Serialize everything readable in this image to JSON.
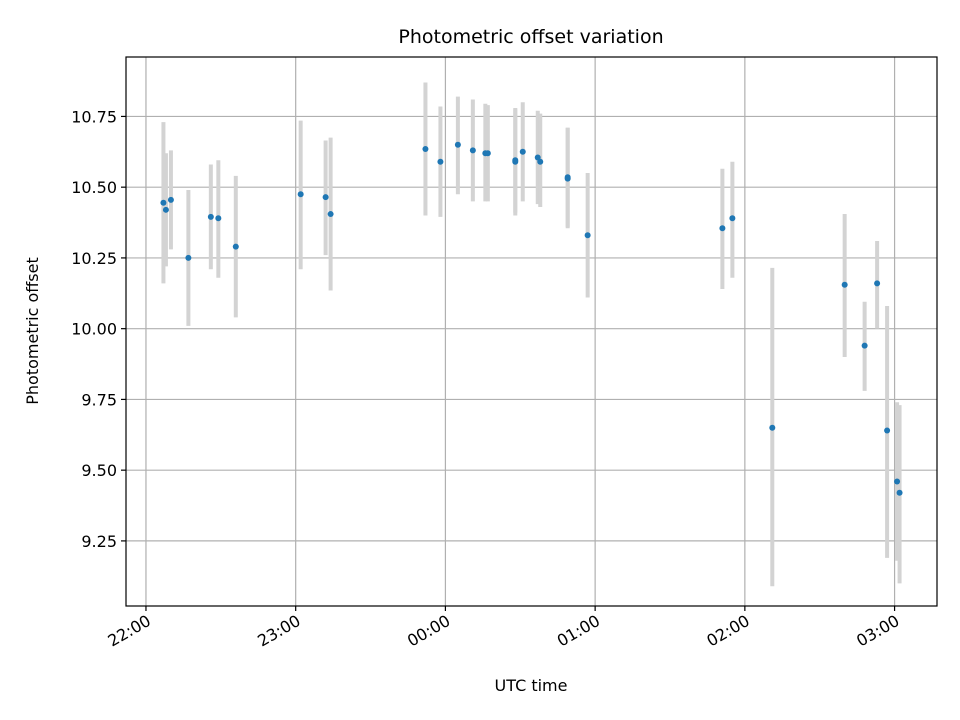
{
  "chart_data": {
    "type": "scatter",
    "title": "Photometric offset variation",
    "xlabel": "UTC time",
    "ylabel": "Photometric offset",
    "x_unit": "UTC time of night (22:00 to 03:00)",
    "xlim": [
      "21:52",
      "03:17"
    ],
    "ylim": [
      9.02,
      10.96
    ],
    "grid": true,
    "x_ticks": [
      "22:00",
      "23:00",
      "00:00",
      "01:00",
      "02:00",
      "03:00"
    ],
    "y_ticks": [
      "9.25",
      "9.50",
      "9.75",
      "10.00",
      "10.25",
      "10.50",
      "10.75"
    ],
    "colors": {
      "point": "#1f77b4",
      "errorbar": "#d3d3d3",
      "grid": "#b0b0b0"
    },
    "points": [
      {
        "x": "22:07",
        "y": 10.445,
        "yerr_low": 10.16,
        "yerr_high": 10.73
      },
      {
        "x": "22:08",
        "y": 10.42,
        "yerr_low": 10.22,
        "yerr_high": 10.62
      },
      {
        "x": "22:10",
        "y": 10.455,
        "yerr_low": 10.28,
        "yerr_high": 10.63
      },
      {
        "x": "22:17",
        "y": 10.25,
        "yerr_low": 10.01,
        "yerr_high": 10.49
      },
      {
        "x": "22:26",
        "y": 10.395,
        "yerr_low": 10.21,
        "yerr_high": 10.58
      },
      {
        "x": "22:29",
        "y": 10.39,
        "yerr_low": 10.18,
        "yerr_high": 10.595
      },
      {
        "x": "22:36",
        "y": 10.29,
        "yerr_low": 10.04,
        "yerr_high": 10.54
      },
      {
        "x": "23:02",
        "y": 10.475,
        "yerr_low": 10.21,
        "yerr_high": 10.735
      },
      {
        "x": "23:12",
        "y": 10.465,
        "yerr_low": 10.26,
        "yerr_high": 10.665
      },
      {
        "x": "23:14",
        "y": 10.405,
        "yerr_low": 10.135,
        "yerr_high": 10.675
      },
      {
        "x": "23:52",
        "y": 10.635,
        "yerr_low": 10.4,
        "yerr_high": 10.87
      },
      {
        "x": "23:58",
        "y": 10.59,
        "yerr_low": 10.395,
        "yerr_high": 10.785
      },
      {
        "x": "00:05",
        "y": 10.65,
        "yerr_low": 10.475,
        "yerr_high": 10.82
      },
      {
        "x": "00:11",
        "y": 10.63,
        "yerr_low": 10.45,
        "yerr_high": 10.81
      },
      {
        "x": "00:16",
        "y": 10.62,
        "yerr_low": 10.45,
        "yerr_high": 10.795
      },
      {
        "x": "00:17",
        "y": 10.62,
        "yerr_low": 10.45,
        "yerr_high": 10.79
      },
      {
        "x": "00:28",
        "y": 10.59,
        "yerr_low": 10.4,
        "yerr_high": 10.78
      },
      {
        "x": "00:28",
        "y": 10.595,
        "yerr_low": 10.41,
        "yerr_high": 10.775
      },
      {
        "x": "00:31",
        "y": 10.625,
        "yerr_low": 10.45,
        "yerr_high": 10.8
      },
      {
        "x": "00:37",
        "y": 10.605,
        "yerr_low": 10.44,
        "yerr_high": 10.77
      },
      {
        "x": "00:38",
        "y": 10.59,
        "yerr_low": 10.43,
        "yerr_high": 10.76
      },
      {
        "x": "00:49",
        "y": 10.53,
        "yerr_low": 10.355,
        "yerr_high": 10.71
      },
      {
        "x": "00:49",
        "y": 10.535,
        "yerr_low": 10.36,
        "yerr_high": 10.71
      },
      {
        "x": "00:57",
        "y": 10.33,
        "yerr_low": 10.11,
        "yerr_high": 10.55
      },
      {
        "x": "01:51",
        "y": 10.355,
        "yerr_low": 10.14,
        "yerr_high": 10.565
      },
      {
        "x": "01:55",
        "y": 10.39,
        "yerr_low": 10.18,
        "yerr_high": 10.59
      },
      {
        "x": "02:11",
        "y": 9.65,
        "yerr_low": 9.09,
        "yerr_high": 10.215
      },
      {
        "x": "02:40",
        "y": 10.155,
        "yerr_low": 9.9,
        "yerr_high": 10.405
      },
      {
        "x": "02:48",
        "y": 9.94,
        "yerr_low": 9.78,
        "yerr_high": 10.095
      },
      {
        "x": "02:53",
        "y": 10.16,
        "yerr_low": 10.0,
        "yerr_high": 10.31
      },
      {
        "x": "02:57",
        "y": 9.64,
        "yerr_low": 9.19,
        "yerr_high": 10.08
      },
      {
        "x": "03:01",
        "y": 9.46,
        "yerr_low": 9.18,
        "yerr_high": 9.74
      },
      {
        "x": "03:02",
        "y": 9.42,
        "yerr_low": 9.1,
        "yerr_high": 9.73
      }
    ]
  }
}
